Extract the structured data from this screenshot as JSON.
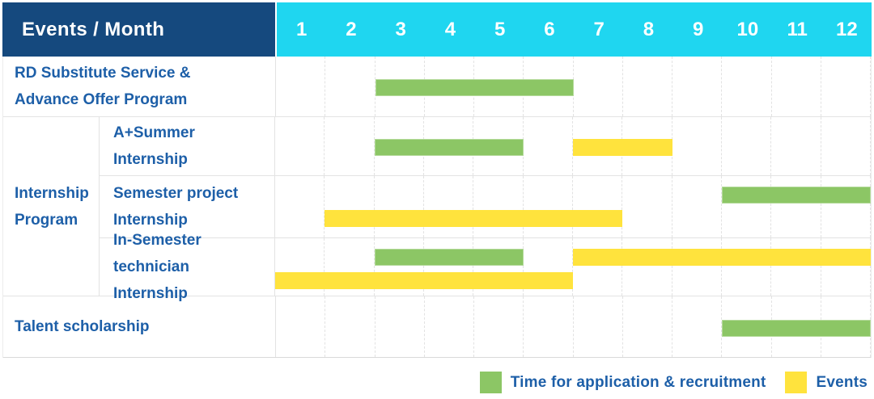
{
  "header": {
    "title": "Events / Month",
    "months": [
      "1",
      "2",
      "3",
      "4",
      "5",
      "6",
      "7",
      "8",
      "9",
      "10",
      "11",
      "12"
    ]
  },
  "colors": {
    "header_bg": "#15497E",
    "month_bar_bg": "#1FD6F0",
    "recruitment_green": "#8CC665",
    "events_yellow": "#FFE33D",
    "label_blue": "#1D5FA8"
  },
  "group_label_lines": [
    "Internship",
    "Program"
  ],
  "legend": {
    "items": [
      {
        "kind": "recruitment",
        "label": "Time for application & recruitment"
      },
      {
        "kind": "events",
        "label": "Events"
      }
    ]
  },
  "chart_data": {
    "type": "gantt",
    "unit": "month",
    "x_range": [
      1,
      12
    ],
    "bar_kinds": {
      "recruitment": "Time for application & recruitment",
      "events": "Events"
    },
    "rows": [
      {
        "group": "",
        "label": "RD Substitute Service & Advance Offer Program",
        "label_lines": [
          "RD Substitute Service &",
          "Advance Offer Program"
        ],
        "lanes": 1,
        "bars": [
          {
            "kind": "recruitment",
            "start_month": 3,
            "end_month": 6,
            "lane": 0
          }
        ]
      },
      {
        "group": "Internship Program",
        "label": "A+Summer Internship",
        "label_lines": [
          "A+Summer",
          "Internship"
        ],
        "lanes": 1,
        "bars": [
          {
            "kind": "recruitment",
            "start_month": 3,
            "end_month": 5,
            "lane": 0
          },
          {
            "kind": "events",
            "start_month": 7,
            "end_month": 8,
            "lane": 0
          }
        ]
      },
      {
        "group": "Internship Program",
        "label": "Semester project Internship",
        "label_lines": [
          "Semester project",
          "Internship"
        ],
        "lanes": 2,
        "bars": [
          {
            "kind": "recruitment",
            "start_month": 10,
            "end_month": 12,
            "lane": 0
          },
          {
            "kind": "events",
            "start_month": 2,
            "end_month": 7,
            "lane": 1
          }
        ]
      },
      {
        "group": "Internship Program",
        "label": "In-Semester technician Internship",
        "label_lines": [
          "In-Semester",
          "technician Internship"
        ],
        "lanes": 2,
        "bars": [
          {
            "kind": "recruitment",
            "start_month": 3,
            "end_month": 5,
            "lane": 0
          },
          {
            "kind": "events",
            "start_month": 7,
            "end_month": 12,
            "lane": 0
          },
          {
            "kind": "events",
            "start_month": 1,
            "end_month": 6,
            "lane": 1
          }
        ]
      },
      {
        "group": "",
        "label": "Talent scholarship",
        "label_lines": [
          "Talent scholarship"
        ],
        "lanes": 1,
        "bars": [
          {
            "kind": "recruitment",
            "start_month": 10,
            "end_month": 12,
            "lane": 0
          }
        ]
      }
    ]
  }
}
